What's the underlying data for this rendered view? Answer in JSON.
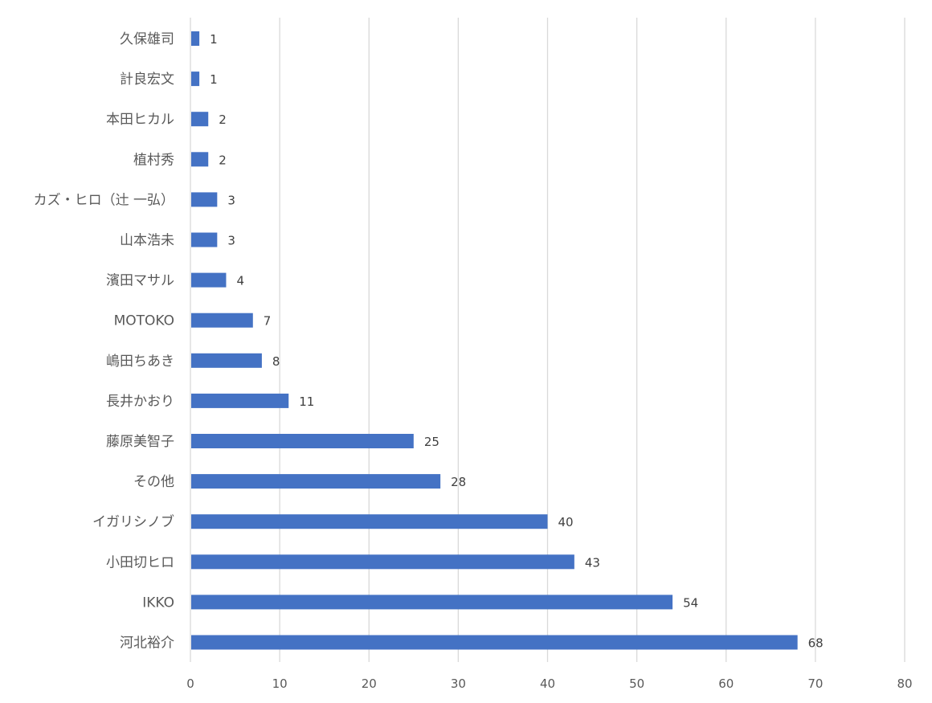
{
  "chart_data": {
    "type": "bar",
    "orientation": "horizontal",
    "title": "",
    "xlabel": "",
    "ylabel": "",
    "xlim": [
      0,
      80
    ],
    "ticks": [
      0,
      10,
      20,
      30,
      40,
      50,
      60,
      70,
      80
    ],
    "grid": true,
    "legend": "none",
    "bar_color": "#4472c4",
    "categories": [
      "久保雄司",
      "計良宏文",
      "本田ヒカル",
      "植村秀",
      "カズ・ヒロ（辻 一弘）",
      "山本浩未",
      "濱田マサル",
      "MOTOKO",
      "嶋田ちあき",
      "長井かおり",
      "藤原美智子",
      "その他",
      "イガリシノブ",
      "小田切ヒロ",
      "IKKO",
      "河北裕介"
    ],
    "values": [
      1,
      1,
      2,
      2,
      3,
      3,
      4,
      7,
      8,
      11,
      25,
      28,
      40,
      43,
      54,
      68
    ]
  }
}
